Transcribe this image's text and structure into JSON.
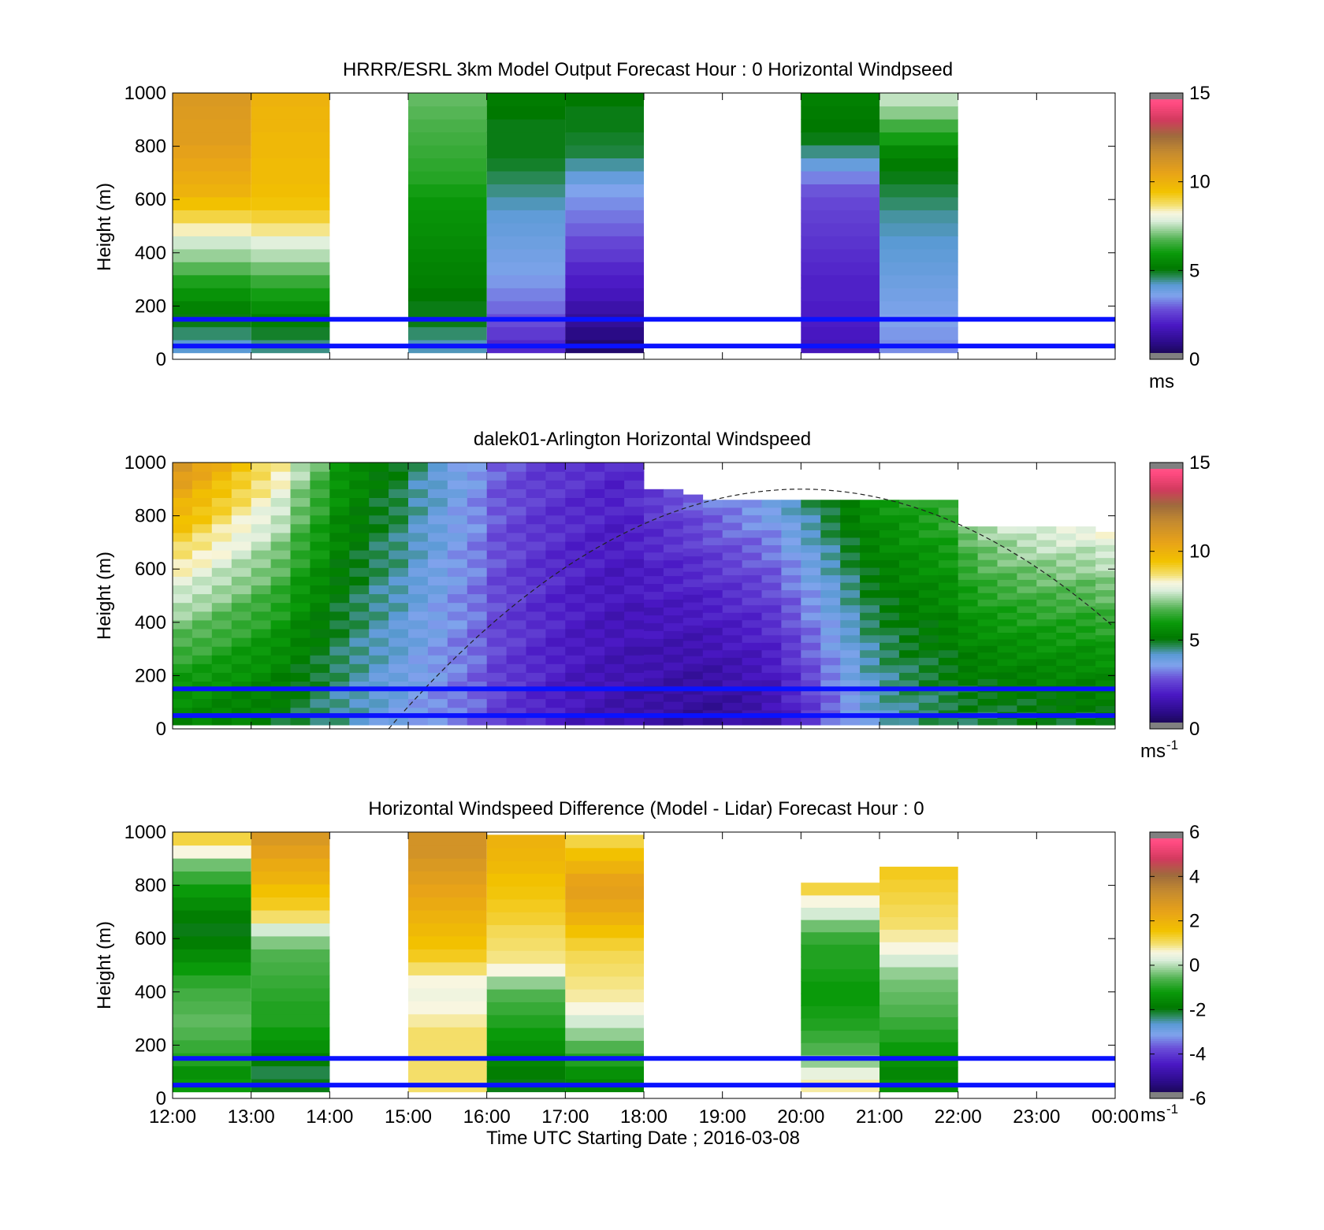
{
  "chart_data": [
    {
      "type": "heatmap",
      "title": "HRRR/ESRL 3km Model Output   Forecast Hour : 0 Horizontal Windpseed",
      "ylabel": "Height (m)",
      "xlabel": "",
      "xlim": [
        12,
        24
      ],
      "ylim": [
        0,
        1000
      ],
      "yticks": [
        "0",
        "200",
        "400",
        "600",
        "800",
        "1000"
      ],
      "colorbar": {
        "ticks": [
          "0",
          "5",
          "10",
          "15"
        ],
        "range": [
          0,
          15
        ],
        "unit": "ms",
        "sup": "",
        "scale": "speed"
      },
      "blue_lines_m": [
        150,
        50
      ],
      "data_top_m": 1000,
      "data_bottom_m": 25,
      "columns": [
        {
          "t0": 12,
          "t1": 13,
          "values": [
            4.2,
            4.6,
            5.0,
            5.4,
            5.8,
            6.2,
            6.8,
            7.3,
            7.7,
            8.4,
            9.0,
            9.5,
            10.0,
            10.2,
            10.4,
            10.6,
            10.8,
            10.8,
            10.9,
            11.0
          ]
        },
        {
          "t0": 13,
          "t1": 14,
          "values": [
            4.5,
            4.9,
            5.3,
            5.7,
            6.1,
            6.5,
            7.0,
            7.5,
            7.9,
            8.6,
            9.1,
            9.4,
            9.6,
            9.7,
            9.7,
            9.8,
            9.8,
            9.9,
            9.9,
            10.0
          ]
        },
        {
          "t0": 15,
          "t1": 16,
          "values": [
            4.3,
            4.6,
            5.0,
            5.0,
            5.1,
            5.3,
            5.4,
            5.5,
            5.6,
            5.7,
            5.8,
            5.9,
            6.1,
            6.3,
            6.4,
            6.5,
            6.6,
            6.7,
            6.8,
            6.9
          ]
        },
        {
          "t0": 16,
          "t1": 17,
          "values": [
            2.2,
            2.5,
            2.8,
            3.1,
            3.3,
            3.5,
            3.7,
            3.8,
            3.9,
            4.0,
            4.1,
            4.3,
            4.5,
            4.7,
            4.9,
            5.0,
            5.0,
            5.0,
            5.1,
            5.2
          ]
        },
        {
          "t0": 17,
          "t1": 18,
          "values": [
            0.6,
            0.9,
            1.2,
            1.5,
            1.8,
            2.0,
            2.2,
            2.5,
            2.7,
            3.0,
            3.2,
            3.4,
            3.6,
            4.0,
            4.4,
            4.8,
            4.9,
            5.0,
            5.0,
            5.1
          ]
        },
        {
          "t0": 20,
          "t1": 21,
          "values": [
            1.8,
            1.9,
            2.0,
            2.0,
            2.1,
            2.1,
            2.2,
            2.3,
            2.4,
            2.5,
            2.6,
            2.7,
            2.9,
            3.3,
            4.0,
            4.5,
            5.0,
            5.1,
            5.2,
            5.3
          ]
        },
        {
          "t0": 21,
          "t1": 22,
          "values": [
            3.4,
            3.5,
            3.6,
            3.7,
            3.8,
            3.9,
            4.0,
            4.1,
            4.2,
            4.3,
            4.4,
            4.6,
            4.8,
            5.0,
            5.2,
            5.5,
            6.1,
            6.6,
            7.2,
            7.6
          ]
        }
      ]
    },
    {
      "type": "heatmap",
      "title": "dalek01-Arlington  Horizontal Windspeed",
      "ylabel": "Height (m)",
      "xlabel": "",
      "xlim": [
        12,
        24
      ],
      "ylim": [
        0,
        1000
      ],
      "yticks": [
        "0",
        "200",
        "400",
        "600",
        "800",
        "1000"
      ],
      "colorbar": {
        "ticks": [
          "0",
          "5",
          "10",
          "15"
        ],
        "range": [
          0,
          15
        ],
        "unit": "ms",
        "sup": "-1",
        "scale": "speed"
      },
      "blue_lines_m": [
        150,
        50
      ],
      "data_top_m": 1000,
      "data_bottom_m": 15,
      "time_step_h": 0.25,
      "column_centers": [
        12.125,
        12.375,
        12.625,
        12.875,
        13.125,
        13.375,
        13.625,
        13.875,
        14.125,
        14.375,
        14.625,
        14.875,
        15.125,
        15.375,
        15.625,
        15.875,
        16.125,
        16.375,
        16.625,
        16.875,
        17.125,
        17.375,
        17.625,
        17.875,
        18.125,
        18.375,
        18.625,
        18.875,
        19.125,
        19.375,
        19.625,
        19.875,
        20.125,
        20.375,
        20.625,
        20.875,
        21.125,
        21.375,
        21.625,
        21.875,
        22.125,
        22.375,
        22.625,
        22.875,
        23.125,
        23.375,
        23.625,
        23.875
      ],
      "column_low_speed": [
        5.5,
        5.5,
        5.4,
        5.3,
        5.2,
        5.0,
        4.8,
        4.6,
        4.4,
        4.2,
        4.0,
        3.8,
        3.6,
        3.4,
        3.2,
        3.0,
        2.6,
        2.4,
        2.2,
        2.0,
        1.8,
        1.7,
        1.6,
        1.5,
        1.4,
        1.3,
        1.2,
        1.2,
        1.3,
        1.4,
        1.6,
        2.0,
        2.5,
        3.0,
        3.5,
        4.0,
        4.3,
        4.5,
        4.6,
        4.7,
        4.8,
        4.8,
        4.9,
        4.9,
        5.0,
        5.0,
        5.0,
        5.1
      ],
      "column_high_speed": [
        11.0,
        10.5,
        10.0,
        9.5,
        9.0,
        8.5,
        7.5,
        6.8,
        6.0,
        5.6,
        5.2,
        5.0,
        4.5,
        4.2,
        3.8,
        3.5,
        3.0,
        2.8,
        2.6,
        2.5,
        2.4,
        2.3,
        2.2,
        2.4,
        2.6,
        2.8,
        3.0,
        3.2,
        3.4,
        3.6,
        3.8,
        4.2,
        4.6,
        5.0,
        5.4,
        5.8,
        6.0,
        6.2,
        6.4,
        6.6,
        7.0,
        7.4,
        7.6,
        7.8,
        7.9,
        8.0,
        8.0,
        8.1
      ],
      "column_data_top_m": [
        1000,
        1000,
        1000,
        1000,
        1000,
        1000,
        1000,
        1000,
        1000,
        1000,
        1000,
        1000,
        1000,
        1000,
        1000,
        1000,
        1000,
        1000,
        1000,
        1000,
        1000,
        1000,
        1000,
        1000,
        900,
        900,
        880,
        860,
        860,
        860,
        860,
        860,
        860,
        860,
        860,
        860,
        860,
        860,
        860,
        860,
        760,
        760,
        760,
        760,
        760,
        760,
        760,
        740
      ],
      "sun_curve_peak_m": 900,
      "sun_curve_peak_h": 20.0,
      "sun_curve_zero_h": 14.75
    },
    {
      "type": "heatmap",
      "title": "Horizontal Windspeed Difference (Model - Lidar) Forecast Hour : 0",
      "ylabel": "Height (m)",
      "xlabel": "Time UTC  Starting Date ; 2016-03-08",
      "xlim": [
        12,
        24
      ],
      "ylim": [
        0,
        1000
      ],
      "xticks": [
        "12:00",
        "13:00",
        "14:00",
        "15:00",
        "16:00",
        "17:00",
        "18:00",
        "19:00",
        "20:00",
        "21:00",
        "22:00",
        "23:00",
        "00:00"
      ],
      "yticks": [
        "0",
        "200",
        "400",
        "600",
        "800",
        "1000"
      ],
      "colorbar": {
        "ticks": [
          "-6",
          "-4",
          "-2",
          "0",
          "2",
          "4",
          "6"
        ],
        "range": [
          -6,
          6
        ],
        "unit": "ms",
        "sup": "-1",
        "scale": "diff"
      },
      "blue_lines_m": [
        150,
        50
      ],
      "data_bottom_m": 25,
      "columns": [
        {
          "t0": 12,
          "t1": 13,
          "top": 1000,
          "values": [
            -1.2,
            -1.4,
            -1.0,
            -0.8,
            -0.6,
            -0.5,
            -0.6,
            -0.7,
            -0.9,
            -1.2,
            -1.5,
            -1.8,
            -2.0,
            -1.8,
            -1.5,
            -1.2,
            -0.8,
            -0.4,
            0.6,
            1.2
          ]
        },
        {
          "t0": 13,
          "t1": 14,
          "top": 1000,
          "values": [
            -2.0,
            -2.2,
            -1.8,
            -1.4,
            -1.2,
            -1.0,
            -1.0,
            -0.9,
            -0.8,
            -0.7,
            -0.6,
            -0.3,
            0.2,
            1.0,
            1.4,
            1.6,
            2.0,
            2.2,
            2.5,
            2.8
          ]
        },
        {
          "t0": 15,
          "t1": 16,
          "top": 1000,
          "values": [
            1.0,
            1.0,
            1.0,
            1.0,
            1.0,
            0.8,
            0.6,
            0.5,
            0.6,
            1.0,
            1.4,
            1.6,
            1.8,
            2.0,
            2.2,
            2.4,
            2.6,
            2.8,
            3.0,
            3.0
          ]
        },
        {
          "t0": 16,
          "t1": 17,
          "top": 990,
          "values": [
            -2.0,
            -1.8,
            -1.6,
            -1.4,
            -1.2,
            -1.0,
            -0.8,
            -0.6,
            -0.2,
            0.6,
            0.9,
            1.0,
            1.1,
            1.3,
            1.4,
            1.5,
            1.6,
            1.8,
            1.9,
            2.0
          ]
        },
        {
          "t0": 17,
          "t1": 18,
          "top": 990,
          "values": [
            -1.6,
            -1.4,
            -1.0,
            -0.6,
            -0.2,
            0.2,
            0.6,
            0.8,
            0.9,
            1.0,
            1.1,
            1.3,
            1.6,
            2.0,
            2.3,
            2.5,
            2.4,
            2.0,
            1.6,
            1.2
          ]
        },
        {
          "t0": 20,
          "t1": 21,
          "top": 810,
          "values": [
            0.8,
            0.4,
            -0.2,
            -0.6,
            -0.8,
            -1.0,
            -1.1,
            -1.2,
            -1.2,
            -1.1,
            -1.0,
            -1.0,
            -0.8,
            -0.4,
            0.2,
            0.6,
            1.2
          ]
        },
        {
          "t0": 21,
          "t1": 22,
          "top": 870,
          "values": [
            -1.4,
            -1.6,
            -1.4,
            -1.2,
            -1.0,
            -0.8,
            -0.6,
            -0.5,
            -0.4,
            -0.2,
            0.2,
            0.6,
            0.8,
            1.0,
            1.1,
            1.2,
            1.3,
            1.4
          ]
        }
      ]
    }
  ]
}
